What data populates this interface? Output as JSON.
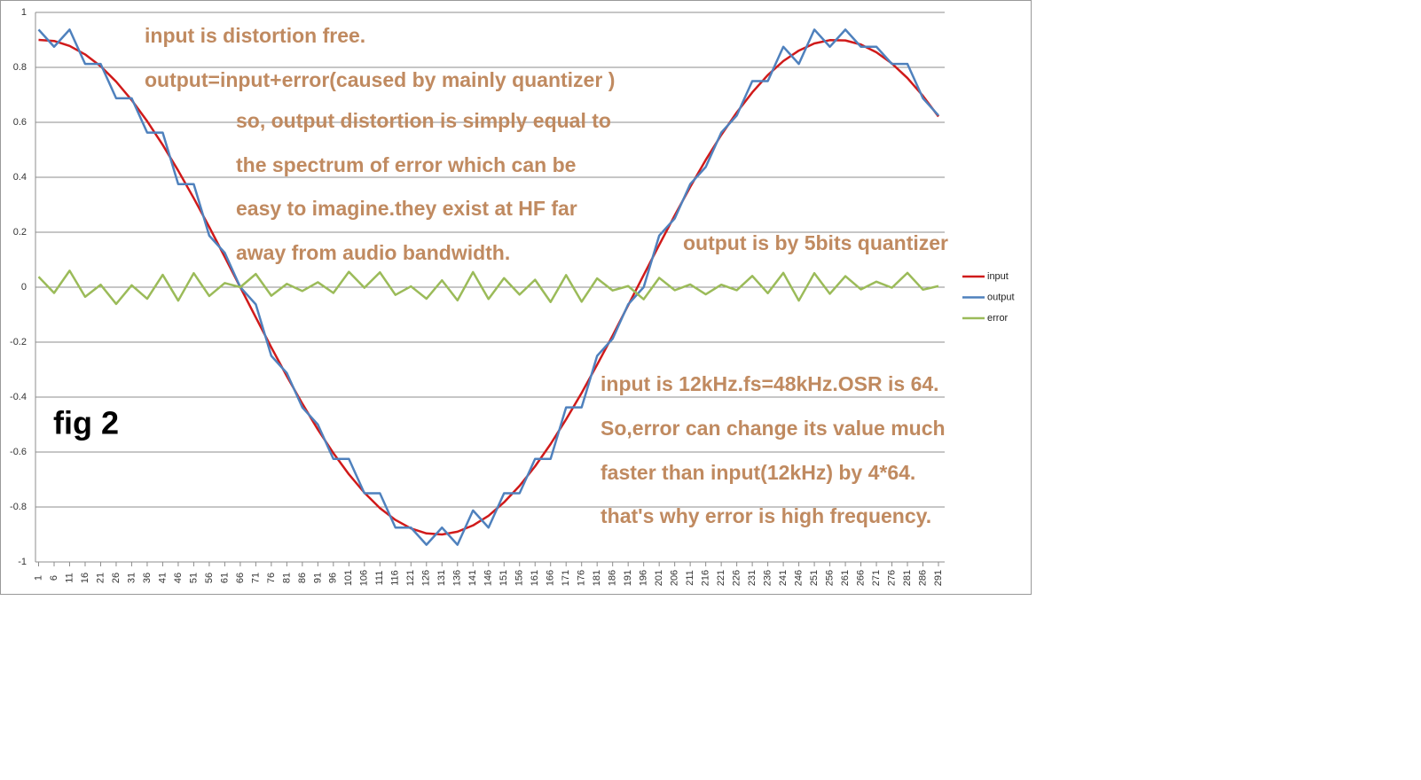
{
  "chart_data": {
    "type": "line",
    "x": [
      1,
      6,
      11,
      16,
      21,
      26,
      31,
      36,
      41,
      46,
      51,
      56,
      61,
      66,
      71,
      76,
      81,
      86,
      91,
      96,
      101,
      106,
      111,
      116,
      121,
      126,
      131,
      136,
      141,
      146,
      151,
      156,
      161,
      166,
      171,
      176,
      181,
      186,
      191,
      196,
      201,
      206,
      211,
      216,
      221,
      226,
      231,
      236,
      241,
      246,
      251,
      256,
      261,
      266,
      271,
      276,
      281,
      286,
      291
    ],
    "series": [
      {
        "name": "input",
        "color": "#d01a1a",
        "values": [
          0.9,
          0.896,
          0.878,
          0.847,
          0.804,
          0.748,
          0.681,
          0.604,
          0.518,
          0.424,
          0.324,
          0.219,
          0.11,
          0,
          -0.11,
          -0.219,
          -0.324,
          -0.424,
          -0.518,
          -0.604,
          -0.681,
          -0.748,
          -0.804,
          -0.847,
          -0.878,
          -0.896,
          -0.9,
          -0.89,
          -0.867,
          -0.832,
          -0.783,
          -0.723,
          -0.652,
          -0.571,
          -0.481,
          -0.385,
          -0.282,
          -0.176,
          -0.066,
          0.044,
          0.154,
          0.261,
          0.365,
          0.463,
          0.554,
          0.636,
          0.709,
          0.772,
          0.823,
          0.861,
          0.887,
          0.899,
          0.898,
          0.883,
          0.855,
          0.814,
          0.761,
          0.696,
          0.621
        ]
      },
      {
        "name": "output",
        "color": "#4f81bd",
        "values": [
          0.9375,
          0.875,
          0.9375,
          0.8125,
          0.8125,
          0.6875,
          0.6875,
          0.5625,
          0.5625,
          0.375,
          0.375,
          0.1875,
          0.125,
          0,
          -0.0625,
          -0.25,
          -0.3125,
          -0.4375,
          -0.5,
          -0.625,
          -0.625,
          -0.75,
          -0.75,
          -0.875,
          -0.875,
          -0.9375,
          -0.875,
          -0.9375,
          -0.8125,
          -0.875,
          -0.75,
          -0.75,
          -0.625,
          -0.625,
          -0.4375,
          -0.4375,
          -0.25,
          -0.1875,
          -0.0625,
          0,
          0.1875,
          0.25,
          0.375,
          0.4375,
          0.5625,
          0.625,
          0.75,
          0.75,
          0.875,
          0.8125,
          0.9375,
          0.875,
          0.9375,
          0.875,
          0.875,
          0.8125,
          0.8125,
          0.6875,
          0.625
        ]
      },
      {
        "name": "error",
        "color": "#9bbb59",
        "values": [
          0.038,
          -0.021,
          0.06,
          -0.035,
          0.009,
          -0.061,
          0.007,
          -0.042,
          0.045,
          -0.049,
          0.051,
          -0.032,
          0.015,
          0,
          0.048,
          -0.031,
          0.012,
          -0.014,
          0.018,
          -0.021,
          0.056,
          -0.002,
          0.054,
          -0.028,
          0.003,
          -0.042,
          0.025,
          -0.048,
          0.055,
          -0.043,
          0.033,
          -0.027,
          0.027,
          -0.054,
          0.044,
          -0.053,
          0.032,
          -0.012,
          0.004,
          -0.044,
          0.034,
          -0.011,
          0.01,
          -0.026,
          0.009,
          -0.011,
          0.041,
          -0.022,
          0.052,
          -0.049,
          0.051,
          -0.024,
          0.04,
          -0.008,
          0.02,
          -0.002,
          0.052,
          -0.009,
          0.004
        ]
      }
    ],
    "xlim": [
      0,
      293
    ],
    "xticks": [
      1,
      6,
      11,
      16,
      21,
      26,
      31,
      36,
      41,
      46,
      51,
      56,
      61,
      66,
      71,
      76,
      81,
      86,
      91,
      96,
      101,
      106,
      111,
      116,
      121,
      126,
      131,
      136,
      141,
      146,
      151,
      156,
      161,
      166,
      171,
      176,
      181,
      186,
      191,
      196,
      201,
      206,
      211,
      216,
      221,
      226,
      231,
      236,
      241,
      246,
      251,
      256,
      261,
      266,
      271,
      276,
      281,
      286,
      291
    ],
    "ylim": [
      -1,
      1
    ],
    "yticks": [
      1,
      0.8,
      0.6,
      0.4,
      0.2,
      0,
      -0.2,
      -0.4,
      -0.6,
      -0.8,
      -1
    ],
    "grid": true,
    "legend": "right",
    "annotations": [
      "input is distortion free.",
      "output=input+error(caused by mainly quantizer )",
      "so, output distortion is simply equal to",
      "the spectrum of error which can be",
      "easy to imagine.they exist at HF far",
      "away from audio bandwidth.",
      "output is by 5bits quantizer",
      "input is 12kHz.fs=48kHz.OSR is 64.",
      "So,error can change its value much",
      "faster than input(12kHz) by 4*64.",
      "that's why error is high frequency.",
      "fig 2"
    ]
  }
}
